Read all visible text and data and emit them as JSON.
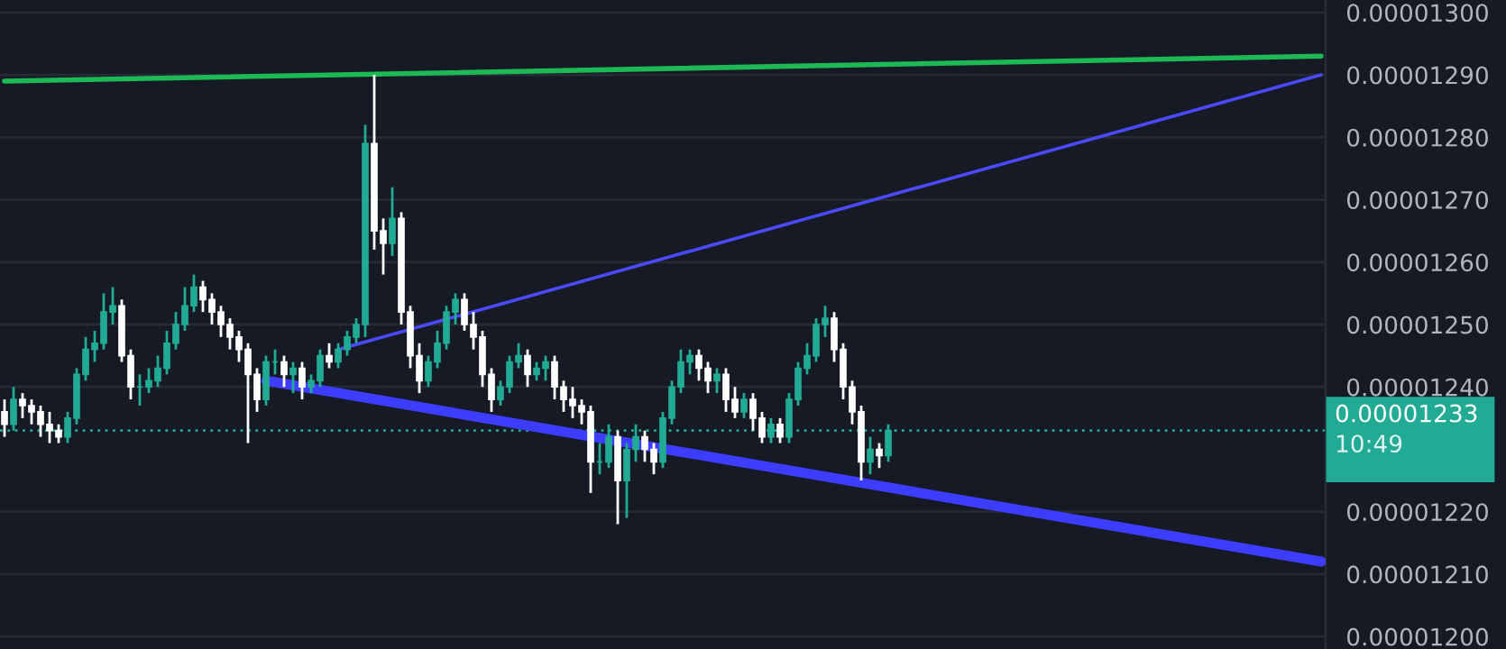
{
  "chart_data": {
    "type": "candlestick",
    "categories": [
      null,
      null,
      null,
      null,
      null,
      null,
      null,
      null,
      null,
      null,
      null,
      null,
      null,
      null,
      null,
      null,
      null,
      null,
      null,
      null,
      null,
      null,
      null,
      null,
      null,
      null,
      null,
      null,
      null,
      null,
      null,
      null,
      null,
      null,
      null,
      null,
      null,
      null,
      null,
      null,
      null,
      null,
      null,
      null,
      null,
      null,
      null,
      null,
      null,
      null,
      null,
      null,
      null,
      null,
      null,
      null,
      null,
      null,
      null,
      null,
      null,
      null,
      null,
      null,
      null,
      null,
      null,
      null,
      null,
      null,
      null,
      null,
      null,
      null,
      null,
      null,
      null,
      null,
      null,
      null,
      null,
      null,
      null,
      null,
      null,
      null,
      null,
      null,
      null,
      null,
      null,
      null,
      null,
      null,
      null,
      null,
      null,
      null,
      null,
      null,
      null,
      null,
      null,
      null,
      null,
      null,
      null,
      null,
      null,
      null,
      null,
      null,
      null,
      null,
      null,
      null,
      null,
      null,
      null,
      null,
      null,
      null,
      null,
      null,
      null,
      null,
      null,
      null,
      null,
      null,
      null,
      null,
      null,
      null,
      null,
      null,
      null,
      null,
      null,
      null,
      null,
      null,
      null,
      null,
      null,
      null,
      null
    ],
    "ohlc": [
      [
        1.236e-05,
        1.238e-05,
        1.232e-05,
        1.234e-05
      ],
      [
        1.234e-05,
        1.24e-05,
        1.233e-05,
        1.238e-05
      ],
      [
        1.238e-05,
        1.239e-05,
        1.235e-05,
        1.237e-05
      ],
      [
        1.237e-05,
        1.238e-05,
        1.234e-05,
        1.236e-05
      ],
      [
        1.236e-05,
        1.237e-05,
        1.232e-05,
        1.234e-05
      ],
      [
        1.234e-05,
        1.236e-05,
        1.231e-05,
        1.233e-05
      ],
      [
        1.233e-05,
        1.234e-05,
        1.231e-05,
        1.232e-05
      ],
      [
        1.232e-05,
        1.236e-05,
        1.231e-05,
        1.235e-05
      ],
      [
        1.235e-05,
        1.243e-05,
        1.234e-05,
        1.242e-05
      ],
      [
        1.242e-05,
        1.248e-05,
        1.241e-05,
        1.246e-05
      ],
      [
        1.246e-05,
        1.249e-05,
        1.244e-05,
        1.247e-05
      ],
      [
        1.247e-05,
        1.255e-05,
        1.246e-05,
        1.252e-05
      ],
      [
        1.252e-05,
        1.256e-05,
        1.25e-05,
        1.253e-05
      ],
      [
        1.253e-05,
        1.254e-05,
        1.244e-05,
        1.245e-05
      ],
      [
        1.245e-05,
        1.246e-05,
        1.238e-05,
        1.24e-05
      ],
      [
        1.24e-05,
        1.242e-05,
        1.237e-05,
        1.24e-05
      ],
      [
        1.24e-05,
        1.243e-05,
        1.239e-05,
        1.241e-05
      ],
      [
        1.241e-05,
        1.245e-05,
        1.24e-05,
        1.243e-05
      ],
      [
        1.243e-05,
        1.249e-05,
        1.242e-05,
        1.247e-05
      ],
      [
        1.247e-05,
        1.252e-05,
        1.246e-05,
        1.25e-05
      ],
      [
        1.25e-05,
        1.256e-05,
        1.249e-05,
        1.253e-05
      ],
      [
        1.253e-05,
        1.258e-05,
        1.252e-05,
        1.256e-05
      ],
      [
        1.256e-05,
        1.257e-05,
        1.252e-05,
        1.254e-05
      ],
      [
        1.254e-05,
        1.255e-05,
        1.25e-05,
        1.252e-05
      ],
      [
        1.252e-05,
        1.253e-05,
        1.248e-05,
        1.25e-05
      ],
      [
        1.25e-05,
        1.251e-05,
        1.246e-05,
        1.248e-05
      ],
      [
        1.248e-05,
        1.249e-05,
        1.244e-05,
        1.246e-05
      ],
      [
        1.246e-05,
        1.247e-05,
        1.231e-05,
        1.242e-05
      ],
      [
        1.242e-05,
        1.243e-05,
        1.236e-05,
        1.238e-05
      ],
      [
        1.238e-05,
        1.245e-05,
        1.237e-05,
        1.244e-05
      ],
      [
        1.244e-05,
        1.246e-05,
        1.242e-05,
        1.244e-05
      ],
      [
        1.244e-05,
        1.245e-05,
        1.24e-05,
        1.242e-05
      ],
      [
        1.242e-05,
        1.244e-05,
        1.239e-05,
        1.243e-05
      ],
      [
        1.243e-05,
        1.244e-05,
        1.238e-05,
        1.24e-05
      ],
      [
        1.24e-05,
        1.242e-05,
        1.239e-05,
        1.241e-05
      ],
      [
        1.241e-05,
        1.246e-05,
        1.24e-05,
        1.245e-05
      ],
      [
        1.245e-05,
        1.247e-05,
        1.243e-05,
        1.244e-05
      ],
      [
        1.244e-05,
        1.247e-05,
        1.243e-05,
        1.246e-05
      ],
      [
        1.246e-05,
        1.249e-05,
        1.245e-05,
        1.248e-05
      ],
      [
        1.248e-05,
        1.251e-05,
        1.247e-05,
        1.25e-05
      ],
      [
        1.25e-05,
        1.282e-05,
        1.248e-05,
        1.279e-05
      ],
      [
        1.279e-05,
        1.29e-05,
        1.262e-05,
        1.265e-05
      ],
      [
        1.265e-05,
        1.267e-05,
        1.258e-05,
        1.263e-05
      ],
      [
        1.263e-05,
        1.272e-05,
        1.261e-05,
        1.267e-05
      ],
      [
        1.267e-05,
        1.268e-05,
        1.25e-05,
        1.252e-05
      ],
      [
        1.252e-05,
        1.253e-05,
        1.243e-05,
        1.245e-05
      ],
      [
        1.245e-05,
        1.247e-05,
        1.239e-05,
        1.241e-05
      ],
      [
        1.241e-05,
        1.245e-05,
        1.24e-05,
        1.244e-05
      ],
      [
        1.244e-05,
        1.249e-05,
        1.243e-05,
        1.247e-05
      ],
      [
        1.247e-05,
        1.253e-05,
        1.246e-05,
        1.252e-05
      ],
      [
        1.252e-05,
        1.255e-05,
        1.25e-05,
        1.254e-05
      ],
      [
        1.254e-05,
        1.255e-05,
        1.249e-05,
        1.25e-05
      ],
      [
        1.25e-05,
        1.252e-05,
        1.246e-05,
        1.248e-05
      ],
      [
        1.248e-05,
        1.249e-05,
        1.24e-05,
        1.242e-05
      ],
      [
        1.242e-05,
        1.243e-05,
        1.236e-05,
        1.238e-05
      ],
      [
        1.238e-05,
        1.241e-05,
        1.237e-05,
        1.24e-05
      ],
      [
        1.24e-05,
        1.245e-05,
        1.239e-05,
        1.244e-05
      ],
      [
        1.244e-05,
        1.247e-05,
        1.243e-05,
        1.245e-05
      ],
      [
        1.245e-05,
        1.246e-05,
        1.24e-05,
        1.242e-05
      ],
      [
        1.242e-05,
        1.244e-05,
        1.241e-05,
        1.243e-05
      ],
      [
        1.243e-05,
        1.245e-05,
        1.241e-05,
        1.244e-05
      ],
      [
        1.244e-05,
        1.245e-05,
        1.238e-05,
        1.24e-05
      ],
      [
        1.24e-05,
        1.241e-05,
        1.236e-05,
        1.238e-05
      ],
      [
        1.238e-05,
        1.24e-05,
        1.235e-05,
        1.237e-05
      ],
      [
        1.237e-05,
        1.238e-05,
        1.234e-05,
        1.236e-05
      ],
      [
        1.236e-05,
        1.237e-05,
        1.223e-05,
        1.228e-05
      ],
      [
        1.228e-05,
        1.231e-05,
        1.226e-05,
        1.228e-05
      ],
      [
        1.228e-05,
        1.234e-05,
        1.227e-05,
        1.232e-05
      ],
      [
        1.232e-05,
        1.233e-05,
        1.218e-05,
        1.225e-05
      ],
      [
        1.225e-05,
        1.231e-05,
        1.219e-05,
        1.23e-05
      ],
      [
        1.23e-05,
        1.234e-05,
        1.228e-05,
        1.232e-05
      ],
      [
        1.232e-05,
        1.233e-05,
        1.228e-05,
        1.23e-05
      ],
      [
        1.23e-05,
        1.231e-05,
        1.226e-05,
        1.228e-05
      ],
      [
        1.228e-05,
        1.236e-05,
        1.227e-05,
        1.235e-05
      ],
      [
        1.235e-05,
        1.241e-05,
        1.234e-05,
        1.24e-05
      ],
      [
        1.24e-05,
        1.246e-05,
        1.239e-05,
        1.244e-05
      ],
      [
        1.244e-05,
        1.246e-05,
        1.242e-05,
        1.245e-05
      ],
      [
        1.245e-05,
        1.246e-05,
        1.241e-05,
        1.243e-05
      ],
      [
        1.243e-05,
        1.244e-05,
        1.239e-05,
        1.241e-05
      ],
      [
        1.241e-05,
        1.243e-05,
        1.239e-05,
        1.242e-05
      ],
      [
        1.242e-05,
        1.243e-05,
        1.236e-05,
        1.238e-05
      ],
      [
        1.238e-05,
        1.24e-05,
        1.235e-05,
        1.236e-05
      ],
      [
        1.236e-05,
        1.239e-05,
        1.235e-05,
        1.238e-05
      ],
      [
        1.238e-05,
        1.239e-05,
        1.233e-05,
        1.235e-05
      ],
      [
        1.235e-05,
        1.236e-05,
        1.231e-05,
        1.232e-05
      ],
      [
        1.232e-05,
        1.235e-05,
        1.231e-05,
        1.234e-05
      ],
      [
        1.234e-05,
        1.235e-05,
        1.231e-05,
        1.232e-05
      ],
      [
        1.232e-05,
        1.239e-05,
        1.231e-05,
        1.238e-05
      ],
      [
        1.238e-05,
        1.244e-05,
        1.237e-05,
        1.243e-05
      ],
      [
        1.243e-05,
        1.247e-05,
        1.242e-05,
        1.245e-05
      ],
      [
        1.245e-05,
        1.251e-05,
        1.244e-05,
        1.25e-05
      ],
      [
        1.25e-05,
        1.253e-05,
        1.248e-05,
        1.251e-05
      ],
      [
        1.251e-05,
        1.252e-05,
        1.244e-05,
        1.246e-05
      ],
      [
        1.246e-05,
        1.247e-05,
        1.238e-05,
        1.24e-05
      ],
      [
        1.24e-05,
        1.241e-05,
        1.234e-05,
        1.236e-05
      ],
      [
        1.236e-05,
        1.237e-05,
        1.225e-05,
        1.228e-05
      ],
      [
        1.228e-05,
        1.232e-05,
        1.226e-05,
        1.23e-05
      ],
      [
        1.23e-05,
        1.231e-05,
        1.227e-05,
        1.229e-05
      ],
      [
        1.229e-05,
        1.234e-05,
        1.228e-05,
        1.233e-05
      ],
      null,
      null,
      null,
      null,
      null,
      null,
      null,
      null,
      null,
      null,
      null,
      null,
      null,
      null,
      null,
      null,
      null,
      null,
      null,
      null,
      null,
      null,
      null,
      null,
      null,
      null,
      null,
      null,
      null,
      null,
      null,
      null,
      null,
      null,
      null,
      null,
      null,
      null,
      null,
      null,
      null,
      null,
      null,
      null,
      null,
      null,
      null,
      null
    ],
    "colors": [
      "#ffffff",
      "#22ab94",
      "#ffffff",
      "#ffffff",
      "#ffffff",
      "#ffffff",
      "#ffffff",
      "#22ab94",
      "#22ab94",
      "#22ab94",
      "#22ab94",
      "#22ab94",
      "#22ab94",
      "#ffffff",
      "#ffffff",
      "#22ab94",
      "#22ab94",
      "#22ab94",
      "#22ab94",
      "#22ab94",
      "#22ab94",
      "#22ab94",
      "#ffffff",
      "#ffffff",
      "#ffffff",
      "#ffffff",
      "#ffffff",
      "#ffffff",
      "#ffffff",
      "#22ab94",
      "#22ab94",
      "#ffffff",
      "#22ab94",
      "#ffffff",
      "#22ab94",
      "#22ab94",
      "#ffffff",
      "#22ab94",
      "#22ab94",
      "#22ab94",
      "#22ab94",
      "#ffffff",
      "#ffffff",
      "#22ab94",
      "#ffffff",
      "#ffffff",
      "#ffffff",
      "#22ab94",
      "#22ab94",
      "#22ab94",
      "#22ab94",
      "#ffffff",
      "#ffffff",
      "#ffffff",
      "#ffffff",
      "#22ab94",
      "#22ab94",
      "#22ab94",
      "#ffffff",
      "#22ab94",
      "#22ab94",
      "#ffffff",
      "#ffffff",
      "#ffffff",
      "#ffffff",
      "#ffffff",
      "#22ab94",
      "#22ab94",
      "#ffffff",
      "#22ab94",
      "#22ab94",
      "#ffffff",
      "#ffffff",
      "#22ab94",
      "#22ab94",
      "#22ab94",
      "#22ab94",
      "#ffffff",
      "#ffffff",
      "#22ab94",
      "#ffffff",
      "#ffffff",
      "#22ab94",
      "#ffffff",
      "#ffffff",
      "#22ab94",
      "#ffffff",
      "#22ab94",
      "#22ab94",
      "#22ab94",
      "#22ab94",
      "#22ab94",
      "#ffffff",
      "#ffffff",
      "#ffffff",
      "#ffffff",
      "#22ab94",
      "#ffffff",
      "#22ab94",
      null,
      null,
      null,
      null,
      null,
      null,
      null,
      null,
      null,
      null,
      null,
      null,
      null,
      null,
      null,
      null,
      null,
      null,
      null,
      null,
      null,
      null,
      null,
      null,
      null,
      null,
      null,
      null,
      null,
      null,
      null,
      null,
      null,
      null,
      null,
      null,
      null,
      null,
      null,
      null,
      null,
      null,
      null,
      null,
      null,
      null,
      null,
      null
    ],
    "series": [
      {
        "type": "line",
        "color": "#1db954",
        "values": [
          1.289e-05,
          null,
          null,
          null,
          null,
          null,
          null,
          null,
          null,
          null,
          null,
          null,
          null,
          null,
          null,
          null,
          null,
          null,
          null,
          null,
          null,
          null,
          null,
          null,
          null,
          null,
          null,
          null,
          null,
          null,
          null,
          null,
          null,
          null,
          null,
          null,
          null,
          null,
          null,
          null,
          null,
          null,
          null,
          null,
          null,
          null,
          null,
          null,
          null,
          null,
          null,
          null,
          null,
          null,
          null,
          null,
          null,
          null,
          null,
          null,
          null,
          null,
          null,
          null,
          null,
          null,
          null,
          null,
          null,
          null,
          null,
          null,
          null,
          null,
          null,
          null,
          null,
          null,
          null,
          null,
          null,
          null,
          null,
          null,
          null,
          null,
          null,
          null,
          null,
          null,
          null,
          null,
          null,
          null,
          null,
          null,
          null,
          null,
          null,
          null,
          null,
          null,
          null,
          null,
          null,
          null,
          null,
          null,
          null,
          null,
          null,
          null,
          null,
          null,
          null,
          null,
          null,
          null,
          null,
          null,
          null,
          null,
          null,
          null,
          null,
          null,
          null,
          null,
          null,
          null,
          null,
          null,
          null,
          null,
          null,
          null,
          null,
          null,
          null,
          null,
          null,
          null,
          null,
          null,
          null,
          null,
          1.293e-05
        ]
      },
      {
        "type": "line",
        "color": "#4a4aff",
        "values": [
          null,
          null,
          null,
          null,
          null,
          null,
          null,
          null,
          null,
          null,
          null,
          null,
          null,
          null,
          null,
          null,
          null,
          null,
          null,
          null,
          null,
          null,
          null,
          null,
          null,
          null,
          null,
          null,
          null,
          null,
          null,
          null,
          null,
          null,
          null,
          null,
          null,
          1.246e-05,
          null,
          null,
          null,
          null,
          null,
          null,
          null,
          null,
          null,
          null,
          null,
          null,
          null,
          null,
          null,
          null,
          null,
          null,
          null,
          null,
          null,
          null,
          null,
          null,
          null,
          null,
          null,
          null,
          null,
          null,
          null,
          null,
          null,
          null,
          null,
          null,
          null,
          null,
          null,
          null,
          null,
          null,
          null,
          null,
          null,
          null,
          null,
          null,
          null,
          null,
          null,
          null,
          null,
          null,
          null,
          null,
          null,
          null,
          null,
          null,
          null,
          null,
          null,
          null,
          null,
          null,
          null,
          null,
          null,
          null,
          null,
          null,
          null,
          null,
          null,
          null,
          null,
          null,
          null,
          null,
          null,
          null,
          null,
          null,
          null,
          null,
          null,
          null,
          null,
          null,
          null,
          null,
          null,
          null,
          null,
          null,
          null,
          null,
          null,
          null,
          null,
          null,
          null,
          null,
          null,
          null,
          null,
          null,
          1.29e-05
        ]
      },
      {
        "type": "line",
        "color": "#3d3dff",
        "values": [
          null,
          null,
          null,
          null,
          null,
          null,
          null,
          null,
          null,
          null,
          null,
          null,
          null,
          null,
          null,
          null,
          null,
          null,
          null,
          null,
          null,
          null,
          null,
          null,
          null,
          null,
          null,
          null,
          null,
          1.241e-05,
          null,
          null,
          null,
          null,
          null,
          null,
          null,
          null,
          null,
          null,
          null,
          null,
          null,
          null,
          null,
          null,
          null,
          null,
          null,
          null,
          null,
          null,
          null,
          null,
          null,
          null,
          null,
          null,
          null,
          null,
          null,
          null,
          null,
          null,
          null,
          null,
          null,
          null,
          null,
          null,
          null,
          null,
          null,
          null,
          null,
          null,
          null,
          null,
          null,
          null,
          null,
          null,
          null,
          null,
          null,
          null,
          null,
          null,
          null,
          null,
          null,
          null,
          null,
          null,
          null,
          null,
          null,
          null,
          null,
          null,
          null,
          null,
          null,
          null,
          null,
          null,
          null,
          null,
          null,
          null,
          null,
          null,
          null,
          null,
          null,
          null,
          null,
          null,
          null,
          null,
          null,
          null,
          null,
          null,
          null,
          null,
          null,
          null,
          null,
          null,
          null,
          null,
          null,
          null,
          null,
          null,
          null,
          null,
          null,
          null,
          null,
          null,
          null,
          null,
          null,
          null,
          1.212e-05
        ]
      }
    ],
    "ylim": [
      1.198e-05,
      1.302e-05
    ],
    "yticks": [
      {
        "value": 1.2e-05,
        "label": "0.00001200"
      },
      {
        "value": 1.21e-05,
        "label": "0.00001210"
      },
      {
        "value": 1.22e-05,
        "label": "0.00001220"
      },
      {
        "value": 1.24e-05,
        "label": "0.00001240"
      },
      {
        "value": 1.25e-05,
        "label": "0.00001250"
      },
      {
        "value": 1.26e-05,
        "label": "0.00001260"
      },
      {
        "value": 1.27e-05,
        "label": "0.00001270"
      },
      {
        "value": 1.28e-05,
        "label": "0.00001280"
      },
      {
        "value": 1.29e-05,
        "label": "0.00001290"
      },
      {
        "value": 1.3e-05,
        "label": "0.00001300"
      }
    ],
    "ref_lines": [
      {
        "axis": "y",
        "value": 1.233e-05,
        "label": "0.00001233",
        "color": "#22ab94",
        "line_style": "dotted"
      }
    ],
    "annotations": [
      "10:49"
    ],
    "grid": "y",
    "tick_labels": "y"
  }
}
